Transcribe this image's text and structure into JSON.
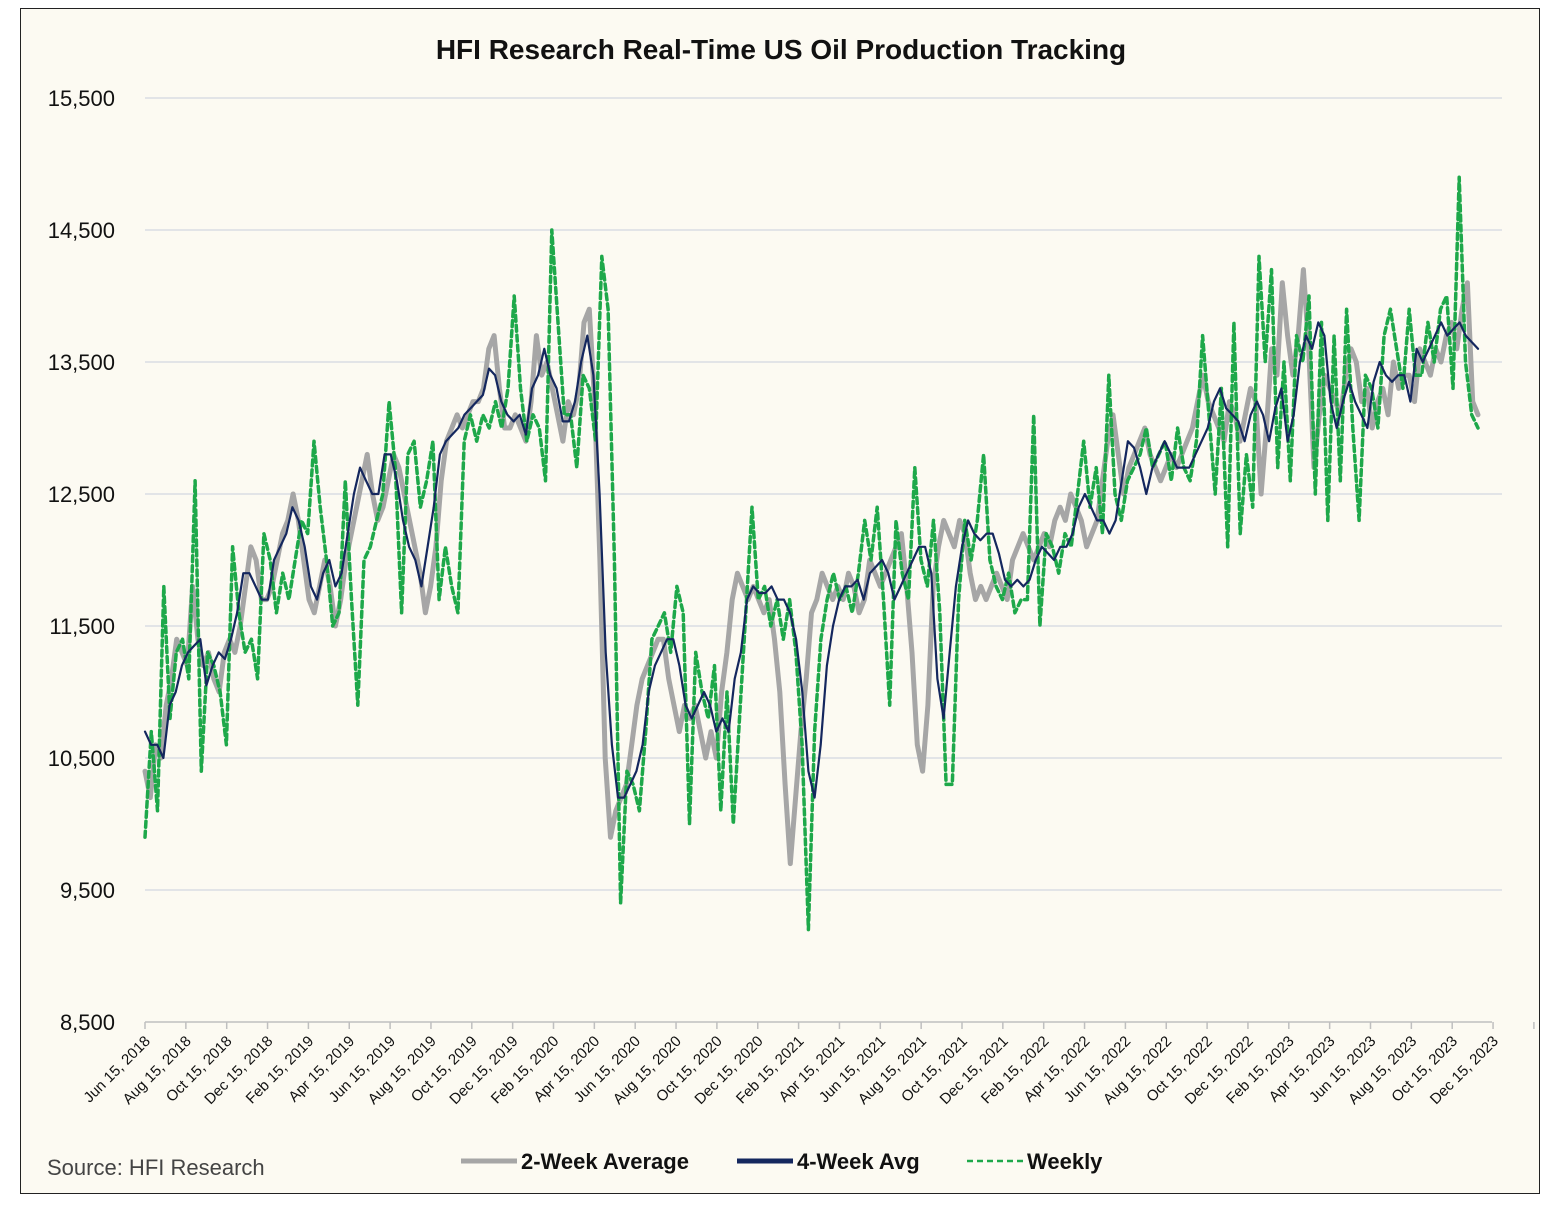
{
  "chart_data": {
    "type": "line",
    "title": "HFI Research Real-Time US Oil Production Tracking",
    "source": "Source: HFI Research",
    "xlabel": "",
    "ylabel": "",
    "ylim": [
      8500,
      15500
    ],
    "yticks": [
      "15,500",
      "14,500",
      "13,500",
      "12,500",
      "11,500",
      "10,500",
      "9,500",
      "8,500"
    ],
    "ytick_values": [
      15500,
      14500,
      13500,
      12500,
      11500,
      10500,
      9500,
      8500
    ],
    "xticks": [
      "Jun 15, 2018",
      "Aug 15, 2018",
      "Oct 15, 2018",
      "Dec 15, 2018",
      "Feb 15, 2019",
      "Apr 15, 2019",
      "Jun 15, 2019",
      "Aug 15, 2019",
      "Oct 15, 2019",
      "Dec 15, 2019",
      "Feb 15, 2020",
      "Apr 15, 2020",
      "Jun 15, 2020",
      "Aug 15, 2020",
      "Oct 15, 2020",
      "Dec 15, 2020",
      "Feb 15, 2021",
      "Apr 15, 2021",
      "Jun 15, 2021",
      "Aug 15, 2021",
      "Oct 15, 2021",
      "Dec 15, 2021",
      "Feb 15, 2022",
      "Apr 15, 2022",
      "Jun 15, 2022",
      "Aug 15, 2022",
      "Oct 15, 2022",
      "Dec 15, 2022",
      "Feb 15, 2023",
      "Apr 15, 2023",
      "Jun 15, 2023",
      "Aug 15, 2023",
      "Oct 15, 2023",
      "Dec 15, 2023"
    ],
    "grid": true,
    "legend_position": "bottom",
    "series": [
      {
        "name": "2-Week Average",
        "color": "#a6a6a6",
        "dash": "solid",
        "values": [
          10400,
          10200,
          10600,
          10500,
          10900,
          11100,
          11400,
          11300,
          11200,
          11800,
          11400,
          11200,
          11300,
          11100,
          11000,
          11300,
          11400,
          11300,
          11500,
          11800,
          12100,
          12000,
          11700,
          11700,
          11800,
          12000,
          12200,
          12300,
          12500,
          12300,
          12000,
          11700,
          11600,
          11800,
          12000,
          11800,
          11500,
          11700,
          12000,
          12200,
          12400,
          12600,
          12800,
          12500,
          12300,
          12400,
          12600,
          12800,
          12700,
          12500,
          12300,
          12100,
          11900,
          11600,
          11800,
          12100,
          12600,
          12900,
          13000,
          13100,
          13000,
          13100,
          13200,
          13200,
          13300,
          13600,
          13700,
          13300,
          13000,
          13000,
          13100,
          13000,
          12900,
          13200,
          13700,
          13400,
          13500,
          13300,
          13100,
          12900,
          13200,
          13100,
          13300,
          13800,
          13900,
          13200,
          12000,
          10500,
          9900,
          10100,
          10200,
          10300,
          10600,
          10900,
          11100,
          11200,
          11300,
          11400,
          11400,
          11100,
          10900,
          10700,
          10900,
          10800,
          10900,
          10700,
          10500,
          10700,
          10500,
          11000,
          11300,
          11700,
          11900,
          11800,
          11700,
          11800,
          11700,
          11600,
          11700,
          11400,
          11000,
          10300,
          9700,
          10200,
          10700,
          11100,
          11600,
          11700,
          11900,
          11800,
          11700,
          11800,
          11700,
          11900,
          11800,
          11600,
          11700,
          12000,
          11900,
          11800,
          11900,
          12000,
          12100,
          12200,
          11800,
          11300,
          10600,
          10400,
          10900,
          11800,
          12100,
          12300,
          12200,
          12100,
          12300,
          12200,
          11900,
          11700,
          11800,
          11700,
          11800,
          11900,
          11800,
          11700,
          12000,
          12100,
          12200,
          12100,
          12000,
          12100,
          12200,
          12100,
          12300,
          12400,
          12300,
          12500,
          12400,
          12300,
          12100,
          12200,
          12300,
          12600,
          12900,
          13100,
          12800,
          12500,
          12700,
          12800,
          12900,
          13000,
          12800,
          12700,
          12600,
          12700,
          12800,
          12700,
          12800,
          12900,
          13000,
          13200,
          13400,
          13200,
          13100,
          13000,
          12900,
          13200,
          13100,
          12900,
          13100,
          13300,
          13200,
          12500,
          13000,
          13600,
          13400,
          14100,
          13700,
          13400,
          13700,
          14200,
          13600,
          12700,
          13100,
          13400,
          13300,
          13200,
          13100,
          13400,
          13600,
          13500,
          13200,
          13300,
          13000,
          13200,
          13300,
          13100,
          13500,
          13300,
          13400,
          13400,
          13200,
          13600,
          13500,
          13400,
          13600,
          13500,
          13700,
          13800,
          13600,
          13900,
          14100,
          13200,
          13100
        ]
      },
      {
        "name": "4-Week Avg",
        "color": "#14275e",
        "dash": "solid",
        "values": [
          10700,
          10600,
          10600,
          10500,
          10900,
          11000,
          11200,
          11300,
          11350,
          11400,
          11050,
          11200,
          11300,
          11250,
          11400,
          11600,
          11900,
          11900,
          11800,
          11700,
          11700,
          12000,
          12100,
          12200,
          12400,
          12300,
          12100,
          11800,
          11700,
          11900,
          12000,
          11800,
          11900,
          12200,
          12500,
          12700,
          12600,
          12500,
          12500,
          12800,
          12800,
          12600,
          12300,
          12100,
          12000,
          11800,
          12100,
          12400,
          12800,
          12900,
          12950,
          13000,
          13100,
          13150,
          13200,
          13250,
          13450,
          13400,
          13200,
          13100,
          13050,
          13100,
          12950,
          13300,
          13400,
          13600,
          13400,
          13300,
          13050,
          13050,
          13200,
          13500,
          13700,
          13400,
          12500,
          11300,
          10600,
          10200,
          10200,
          10300,
          10400,
          10600,
          11000,
          11200,
          11300,
          11400,
          11400,
          11200,
          10900,
          10800,
          10900,
          11000,
          10900,
          10700,
          10800,
          10700,
          11100,
          11300,
          11700,
          11800,
          11750,
          11750,
          11800,
          11700,
          11700,
          11600,
          11400,
          11000,
          10400,
          10200,
          10600,
          11200,
          11500,
          11700,
          11800,
          11800,
          11850,
          11700,
          11900,
          11950,
          12000,
          11900,
          11700,
          11800,
          11900,
          12000,
          12100,
          12100,
          11900,
          11100,
          10800,
          11300,
          11800,
          12100,
          12300,
          12200,
          12150,
          12200,
          12200,
          12050,
          11850,
          11800,
          11850,
          11800,
          11850,
          12000,
          12100,
          12050,
          12000,
          12100,
          12100,
          12200,
          12400,
          12500,
          12400,
          12300,
          12300,
          12200,
          12300,
          12600,
          12900,
          12850,
          12700,
          12500,
          12700,
          12800,
          12900,
          12800,
          12700,
          12700,
          12700,
          12800,
          12900,
          13000,
          13200,
          13300,
          13150,
          13100,
          13050,
          12900,
          13100,
          13200,
          13100,
          12900,
          13150,
          13300,
          12900,
          13100,
          13500,
          13700,
          13600,
          13800,
          13700,
          13200,
          13000,
          13200,
          13350,
          13200,
          13100,
          13000,
          13350,
          13500,
          13400,
          13350,
          13400,
          13400,
          13200,
          13600,
          13500,
          13600,
          13700,
          13800,
          13700,
          13750,
          13800,
          13700,
          13650,
          13600
        ]
      },
      {
        "name": "Weekly",
        "color": "#1ea84a",
        "dash": "6,4",
        "values": [
          9900,
          10700,
          10100,
          11800,
          10800,
          11300,
          11400,
          11100,
          12600,
          10400,
          11300,
          11200,
          11000,
          10600,
          12100,
          11600,
          11300,
          11400,
          11100,
          12200,
          12000,
          11600,
          11900,
          11700,
          12000,
          12300,
          12200,
          12900,
          12400,
          12000,
          11500,
          11600,
          12600,
          11700,
          10900,
          12000,
          12100,
          12300,
          12500,
          13200,
          12700,
          11600,
          12800,
          12900,
          12400,
          12600,
          12900,
          11700,
          12100,
          11800,
          11600,
          12900,
          13100,
          12900,
          13100,
          13000,
          13200,
          13000,
          13300,
          14000,
          13300,
          12900,
          13100,
          13000,
          12600,
          14500,
          13800,
          13100,
          13100,
          12700,
          13400,
          13300,
          12900,
          14300,
          13900,
          12000,
          9400,
          10400,
          10300,
          10100,
          10700,
          11400,
          11500,
          11600,
          11300,
          11800,
          11600,
          10000,
          11300,
          11000,
          10800,
          11200,
          10100,
          11000,
          10000,
          10800,
          11600,
          12400,
          11700,
          11800,
          11500,
          11700,
          11400,
          11700,
          11300,
          10600,
          9200,
          10700,
          11400,
          11700,
          11900,
          11700,
          11800,
          11600,
          11900,
          12300,
          12000,
          12400,
          11700,
          10900,
          12300,
          11900,
          11700,
          12700,
          12000,
          11800,
          12300,
          11600,
          10300,
          10300,
          11700,
          12300,
          12000,
          12300,
          12800,
          12000,
          11800,
          11700,
          11900,
          11600,
          11700,
          11700,
          13100,
          11500,
          12200,
          12100,
          11900,
          12200,
          12100,
          12500,
          12900,
          12400,
          12700,
          12200,
          13400,
          12500,
          12300,
          12600,
          12700,
          12800,
          13000,
          12700,
          12800,
          12900,
          12600,
          13000,
          12700,
          12600,
          12900,
          13700,
          13100,
          12500,
          13300,
          12100,
          13800,
          12200,
          12800,
          12400,
          14300,
          13500,
          14200,
          12700,
          13500,
          12600,
          13700,
          13500,
          14000,
          12500,
          13800,
          12300,
          13700,
          12600,
          13900,
          13000,
          12300,
          13400,
          13300,
          13000,
          13700,
          13900,
          13600,
          13300,
          13900,
          13400,
          13400,
          13800,
          13500,
          13900,
          14000,
          13300,
          14900,
          13500,
          13100,
          13000
        ],
        "note": "Weekly series drawn at a finer time step than averages"
      }
    ]
  },
  "legend": [
    {
      "label": "2-Week Average",
      "color": "#a6a6a6",
      "dash": "solid"
    },
    {
      "label": "4-Week Avg",
      "color": "#14275e",
      "dash": "solid"
    },
    {
      "label": "Weekly",
      "color": "#1ea84a",
      "dash": "6,4"
    }
  ]
}
